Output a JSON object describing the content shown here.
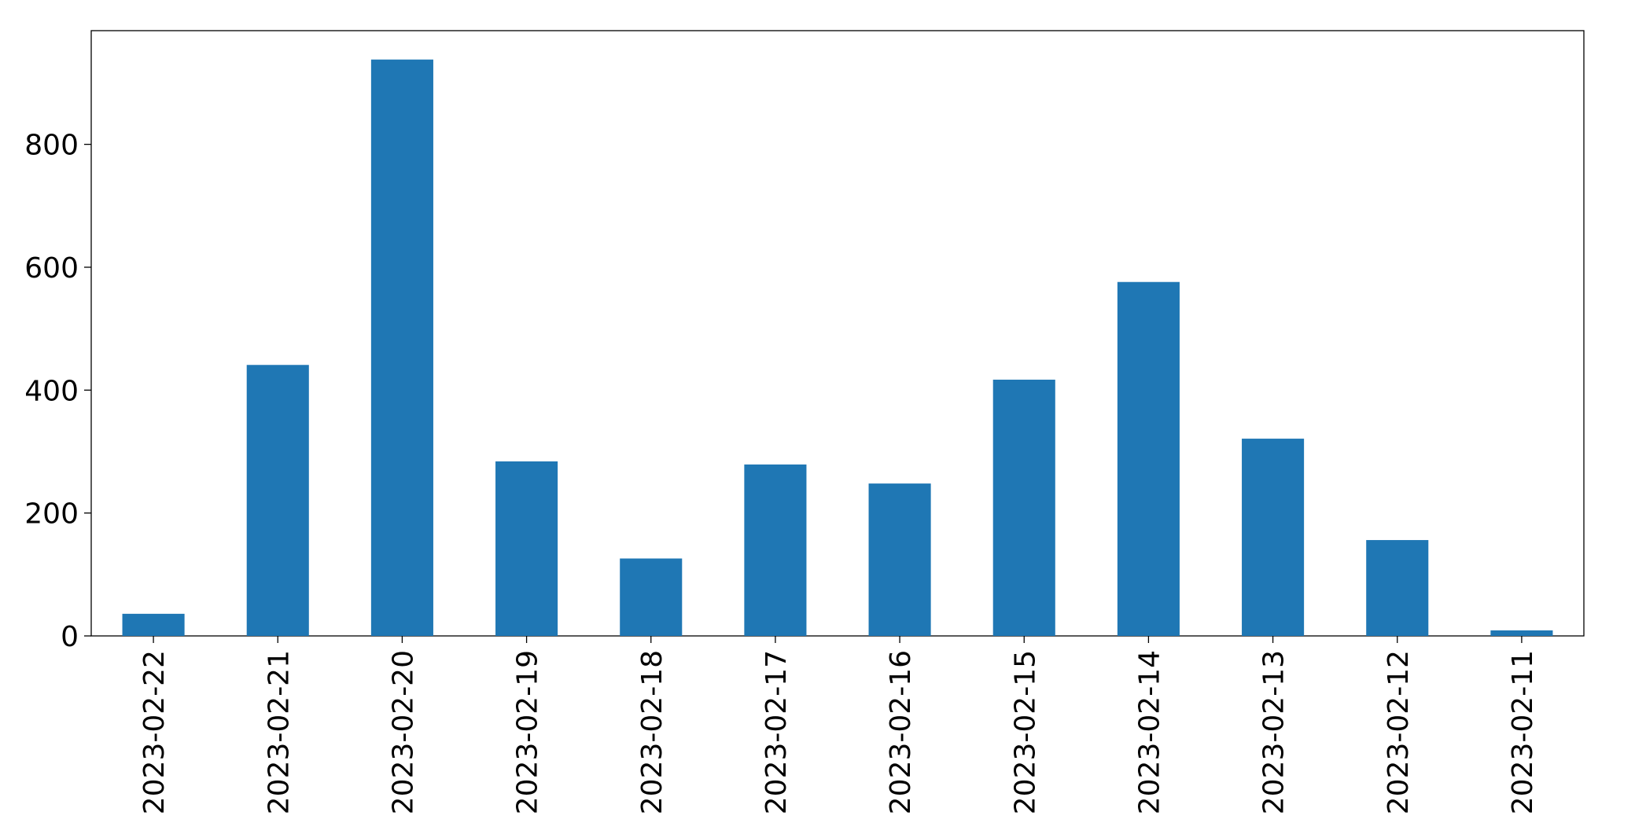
{
  "chart_data": {
    "type": "bar",
    "categories": [
      "2023-02-22",
      "2023-02-21",
      "2023-02-20",
      "2023-02-19",
      "2023-02-18",
      "2023-02-17",
      "2023-02-16",
      "2023-02-15",
      "2023-02-14",
      "2023-02-13",
      "2023-02-12",
      "2023-02-11"
    ],
    "values": [
      36,
      441,
      938,
      284,
      126,
      279,
      248,
      417,
      576,
      321,
      156,
      9
    ],
    "color": "#1f77b4",
    "ylim": [
      0,
      985
    ],
    "yticks": [
      0,
      200,
      400,
      600,
      800
    ],
    "grid": false
  }
}
